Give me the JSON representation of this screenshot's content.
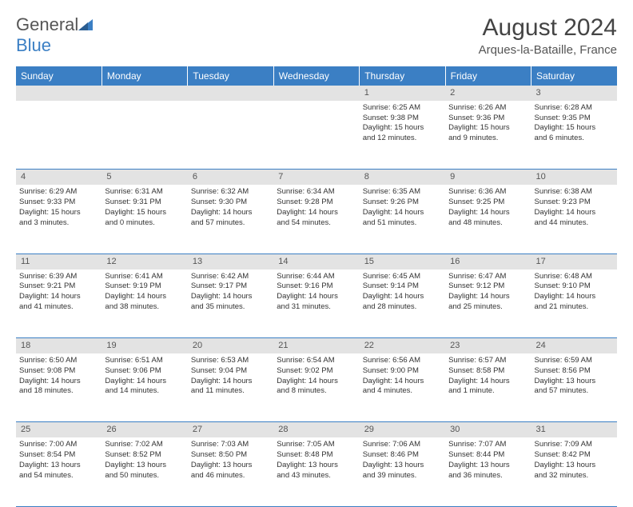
{
  "logo": {
    "text1": "General",
    "text2": "Blue"
  },
  "title": "August 2024",
  "location": "Arques-la-Bataille, France",
  "weekdays": [
    "Sunday",
    "Monday",
    "Tuesday",
    "Wednesday",
    "Thursday",
    "Friday",
    "Saturday"
  ],
  "colors": {
    "header_bg": "#3b7fc4",
    "header_text": "#ffffff",
    "daynum_bg": "#e3e3e3",
    "logo_blue": "#3b7fc4"
  },
  "weeks": [
    [
      {
        "num": "",
        "l1": "",
        "l2": "",
        "l3": "",
        "l4": ""
      },
      {
        "num": "",
        "l1": "",
        "l2": "",
        "l3": "",
        "l4": ""
      },
      {
        "num": "",
        "l1": "",
        "l2": "",
        "l3": "",
        "l4": ""
      },
      {
        "num": "",
        "l1": "",
        "l2": "",
        "l3": "",
        "l4": ""
      },
      {
        "num": "1",
        "l1": "Sunrise: 6:25 AM",
        "l2": "Sunset: 9:38 PM",
        "l3": "Daylight: 15 hours",
        "l4": "and 12 minutes."
      },
      {
        "num": "2",
        "l1": "Sunrise: 6:26 AM",
        "l2": "Sunset: 9:36 PM",
        "l3": "Daylight: 15 hours",
        "l4": "and 9 minutes."
      },
      {
        "num": "3",
        "l1": "Sunrise: 6:28 AM",
        "l2": "Sunset: 9:35 PM",
        "l3": "Daylight: 15 hours",
        "l4": "and 6 minutes."
      }
    ],
    [
      {
        "num": "4",
        "l1": "Sunrise: 6:29 AM",
        "l2": "Sunset: 9:33 PM",
        "l3": "Daylight: 15 hours",
        "l4": "and 3 minutes."
      },
      {
        "num": "5",
        "l1": "Sunrise: 6:31 AM",
        "l2": "Sunset: 9:31 PM",
        "l3": "Daylight: 15 hours",
        "l4": "and 0 minutes."
      },
      {
        "num": "6",
        "l1": "Sunrise: 6:32 AM",
        "l2": "Sunset: 9:30 PM",
        "l3": "Daylight: 14 hours",
        "l4": "and 57 minutes."
      },
      {
        "num": "7",
        "l1": "Sunrise: 6:34 AM",
        "l2": "Sunset: 9:28 PM",
        "l3": "Daylight: 14 hours",
        "l4": "and 54 minutes."
      },
      {
        "num": "8",
        "l1": "Sunrise: 6:35 AM",
        "l2": "Sunset: 9:26 PM",
        "l3": "Daylight: 14 hours",
        "l4": "and 51 minutes."
      },
      {
        "num": "9",
        "l1": "Sunrise: 6:36 AM",
        "l2": "Sunset: 9:25 PM",
        "l3": "Daylight: 14 hours",
        "l4": "and 48 minutes."
      },
      {
        "num": "10",
        "l1": "Sunrise: 6:38 AM",
        "l2": "Sunset: 9:23 PM",
        "l3": "Daylight: 14 hours",
        "l4": "and 44 minutes."
      }
    ],
    [
      {
        "num": "11",
        "l1": "Sunrise: 6:39 AM",
        "l2": "Sunset: 9:21 PM",
        "l3": "Daylight: 14 hours",
        "l4": "and 41 minutes."
      },
      {
        "num": "12",
        "l1": "Sunrise: 6:41 AM",
        "l2": "Sunset: 9:19 PM",
        "l3": "Daylight: 14 hours",
        "l4": "and 38 minutes."
      },
      {
        "num": "13",
        "l1": "Sunrise: 6:42 AM",
        "l2": "Sunset: 9:17 PM",
        "l3": "Daylight: 14 hours",
        "l4": "and 35 minutes."
      },
      {
        "num": "14",
        "l1": "Sunrise: 6:44 AM",
        "l2": "Sunset: 9:16 PM",
        "l3": "Daylight: 14 hours",
        "l4": "and 31 minutes."
      },
      {
        "num": "15",
        "l1": "Sunrise: 6:45 AM",
        "l2": "Sunset: 9:14 PM",
        "l3": "Daylight: 14 hours",
        "l4": "and 28 minutes."
      },
      {
        "num": "16",
        "l1": "Sunrise: 6:47 AM",
        "l2": "Sunset: 9:12 PM",
        "l3": "Daylight: 14 hours",
        "l4": "and 25 minutes."
      },
      {
        "num": "17",
        "l1": "Sunrise: 6:48 AM",
        "l2": "Sunset: 9:10 PM",
        "l3": "Daylight: 14 hours",
        "l4": "and 21 minutes."
      }
    ],
    [
      {
        "num": "18",
        "l1": "Sunrise: 6:50 AM",
        "l2": "Sunset: 9:08 PM",
        "l3": "Daylight: 14 hours",
        "l4": "and 18 minutes."
      },
      {
        "num": "19",
        "l1": "Sunrise: 6:51 AM",
        "l2": "Sunset: 9:06 PM",
        "l3": "Daylight: 14 hours",
        "l4": "and 14 minutes."
      },
      {
        "num": "20",
        "l1": "Sunrise: 6:53 AM",
        "l2": "Sunset: 9:04 PM",
        "l3": "Daylight: 14 hours",
        "l4": "and 11 minutes."
      },
      {
        "num": "21",
        "l1": "Sunrise: 6:54 AM",
        "l2": "Sunset: 9:02 PM",
        "l3": "Daylight: 14 hours",
        "l4": "and 8 minutes."
      },
      {
        "num": "22",
        "l1": "Sunrise: 6:56 AM",
        "l2": "Sunset: 9:00 PM",
        "l3": "Daylight: 14 hours",
        "l4": "and 4 minutes."
      },
      {
        "num": "23",
        "l1": "Sunrise: 6:57 AM",
        "l2": "Sunset: 8:58 PM",
        "l3": "Daylight: 14 hours",
        "l4": "and 1 minute."
      },
      {
        "num": "24",
        "l1": "Sunrise: 6:59 AM",
        "l2": "Sunset: 8:56 PM",
        "l3": "Daylight: 13 hours",
        "l4": "and 57 minutes."
      }
    ],
    [
      {
        "num": "25",
        "l1": "Sunrise: 7:00 AM",
        "l2": "Sunset: 8:54 PM",
        "l3": "Daylight: 13 hours",
        "l4": "and 54 minutes."
      },
      {
        "num": "26",
        "l1": "Sunrise: 7:02 AM",
        "l2": "Sunset: 8:52 PM",
        "l3": "Daylight: 13 hours",
        "l4": "and 50 minutes."
      },
      {
        "num": "27",
        "l1": "Sunrise: 7:03 AM",
        "l2": "Sunset: 8:50 PM",
        "l3": "Daylight: 13 hours",
        "l4": "and 46 minutes."
      },
      {
        "num": "28",
        "l1": "Sunrise: 7:05 AM",
        "l2": "Sunset: 8:48 PM",
        "l3": "Daylight: 13 hours",
        "l4": "and 43 minutes."
      },
      {
        "num": "29",
        "l1": "Sunrise: 7:06 AM",
        "l2": "Sunset: 8:46 PM",
        "l3": "Daylight: 13 hours",
        "l4": "and 39 minutes."
      },
      {
        "num": "30",
        "l1": "Sunrise: 7:07 AM",
        "l2": "Sunset: 8:44 PM",
        "l3": "Daylight: 13 hours",
        "l4": "and 36 minutes."
      },
      {
        "num": "31",
        "l1": "Sunrise: 7:09 AM",
        "l2": "Sunset: 8:42 PM",
        "l3": "Daylight: 13 hours",
        "l4": "and 32 minutes."
      }
    ]
  ]
}
